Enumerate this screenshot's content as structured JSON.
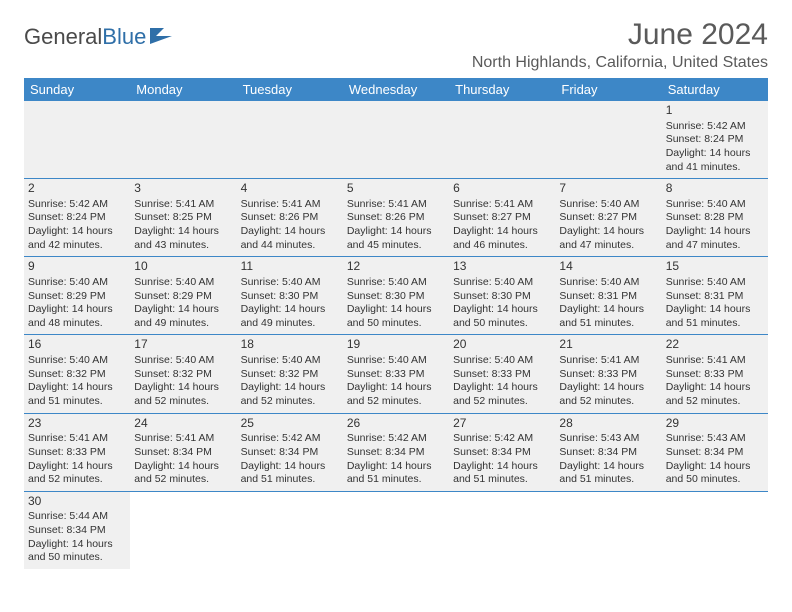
{
  "logo": {
    "part1": "General",
    "part2": "Blue"
  },
  "header": {
    "month_title": "June 2024",
    "location": "North Highlands, California, United States"
  },
  "colors": {
    "header_bar": "#3d87c7",
    "row_divider": "#3d87c7",
    "cell_bg": "#f0f0f0",
    "text": "#333333",
    "logo_accent": "#2f6fa8"
  },
  "weekdays": [
    "Sunday",
    "Monday",
    "Tuesday",
    "Wednesday",
    "Thursday",
    "Friday",
    "Saturday"
  ],
  "weeks": [
    [
      null,
      null,
      null,
      null,
      null,
      null,
      {
        "n": "1",
        "sr": "Sunrise: 5:42 AM",
        "ss": "Sunset: 8:24 PM",
        "d1": "Daylight: 14 hours",
        "d2": "and 41 minutes."
      }
    ],
    [
      {
        "n": "2",
        "sr": "Sunrise: 5:42 AM",
        "ss": "Sunset: 8:24 PM",
        "d1": "Daylight: 14 hours",
        "d2": "and 42 minutes."
      },
      {
        "n": "3",
        "sr": "Sunrise: 5:41 AM",
        "ss": "Sunset: 8:25 PM",
        "d1": "Daylight: 14 hours",
        "d2": "and 43 minutes."
      },
      {
        "n": "4",
        "sr": "Sunrise: 5:41 AM",
        "ss": "Sunset: 8:26 PM",
        "d1": "Daylight: 14 hours",
        "d2": "and 44 minutes."
      },
      {
        "n": "5",
        "sr": "Sunrise: 5:41 AM",
        "ss": "Sunset: 8:26 PM",
        "d1": "Daylight: 14 hours",
        "d2": "and 45 minutes."
      },
      {
        "n": "6",
        "sr": "Sunrise: 5:41 AM",
        "ss": "Sunset: 8:27 PM",
        "d1": "Daylight: 14 hours",
        "d2": "and 46 minutes."
      },
      {
        "n": "7",
        "sr": "Sunrise: 5:40 AM",
        "ss": "Sunset: 8:27 PM",
        "d1": "Daylight: 14 hours",
        "d2": "and 47 minutes."
      },
      {
        "n": "8",
        "sr": "Sunrise: 5:40 AM",
        "ss": "Sunset: 8:28 PM",
        "d1": "Daylight: 14 hours",
        "d2": "and 47 minutes."
      }
    ],
    [
      {
        "n": "9",
        "sr": "Sunrise: 5:40 AM",
        "ss": "Sunset: 8:29 PM",
        "d1": "Daylight: 14 hours",
        "d2": "and 48 minutes."
      },
      {
        "n": "10",
        "sr": "Sunrise: 5:40 AM",
        "ss": "Sunset: 8:29 PM",
        "d1": "Daylight: 14 hours",
        "d2": "and 49 minutes."
      },
      {
        "n": "11",
        "sr": "Sunrise: 5:40 AM",
        "ss": "Sunset: 8:30 PM",
        "d1": "Daylight: 14 hours",
        "d2": "and 49 minutes."
      },
      {
        "n": "12",
        "sr": "Sunrise: 5:40 AM",
        "ss": "Sunset: 8:30 PM",
        "d1": "Daylight: 14 hours",
        "d2": "and 50 minutes."
      },
      {
        "n": "13",
        "sr": "Sunrise: 5:40 AM",
        "ss": "Sunset: 8:30 PM",
        "d1": "Daylight: 14 hours",
        "d2": "and 50 minutes."
      },
      {
        "n": "14",
        "sr": "Sunrise: 5:40 AM",
        "ss": "Sunset: 8:31 PM",
        "d1": "Daylight: 14 hours",
        "d2": "and 51 minutes."
      },
      {
        "n": "15",
        "sr": "Sunrise: 5:40 AM",
        "ss": "Sunset: 8:31 PM",
        "d1": "Daylight: 14 hours",
        "d2": "and 51 minutes."
      }
    ],
    [
      {
        "n": "16",
        "sr": "Sunrise: 5:40 AM",
        "ss": "Sunset: 8:32 PM",
        "d1": "Daylight: 14 hours",
        "d2": "and 51 minutes."
      },
      {
        "n": "17",
        "sr": "Sunrise: 5:40 AM",
        "ss": "Sunset: 8:32 PM",
        "d1": "Daylight: 14 hours",
        "d2": "and 52 minutes."
      },
      {
        "n": "18",
        "sr": "Sunrise: 5:40 AM",
        "ss": "Sunset: 8:32 PM",
        "d1": "Daylight: 14 hours",
        "d2": "and 52 minutes."
      },
      {
        "n": "19",
        "sr": "Sunrise: 5:40 AM",
        "ss": "Sunset: 8:33 PM",
        "d1": "Daylight: 14 hours",
        "d2": "and 52 minutes."
      },
      {
        "n": "20",
        "sr": "Sunrise: 5:40 AM",
        "ss": "Sunset: 8:33 PM",
        "d1": "Daylight: 14 hours",
        "d2": "and 52 minutes."
      },
      {
        "n": "21",
        "sr": "Sunrise: 5:41 AM",
        "ss": "Sunset: 8:33 PM",
        "d1": "Daylight: 14 hours",
        "d2": "and 52 minutes."
      },
      {
        "n": "22",
        "sr": "Sunrise: 5:41 AM",
        "ss": "Sunset: 8:33 PM",
        "d1": "Daylight: 14 hours",
        "d2": "and 52 minutes."
      }
    ],
    [
      {
        "n": "23",
        "sr": "Sunrise: 5:41 AM",
        "ss": "Sunset: 8:33 PM",
        "d1": "Daylight: 14 hours",
        "d2": "and 52 minutes."
      },
      {
        "n": "24",
        "sr": "Sunrise: 5:41 AM",
        "ss": "Sunset: 8:34 PM",
        "d1": "Daylight: 14 hours",
        "d2": "and 52 minutes."
      },
      {
        "n": "25",
        "sr": "Sunrise: 5:42 AM",
        "ss": "Sunset: 8:34 PM",
        "d1": "Daylight: 14 hours",
        "d2": "and 51 minutes."
      },
      {
        "n": "26",
        "sr": "Sunrise: 5:42 AM",
        "ss": "Sunset: 8:34 PM",
        "d1": "Daylight: 14 hours",
        "d2": "and 51 minutes."
      },
      {
        "n": "27",
        "sr": "Sunrise: 5:42 AM",
        "ss": "Sunset: 8:34 PM",
        "d1": "Daylight: 14 hours",
        "d2": "and 51 minutes."
      },
      {
        "n": "28",
        "sr": "Sunrise: 5:43 AM",
        "ss": "Sunset: 8:34 PM",
        "d1": "Daylight: 14 hours",
        "d2": "and 51 minutes."
      },
      {
        "n": "29",
        "sr": "Sunrise: 5:43 AM",
        "ss": "Sunset: 8:34 PM",
        "d1": "Daylight: 14 hours",
        "d2": "and 50 minutes."
      }
    ],
    [
      {
        "n": "30",
        "sr": "Sunrise: 5:44 AM",
        "ss": "Sunset: 8:34 PM",
        "d1": "Daylight: 14 hours",
        "d2": "and 50 minutes."
      },
      null,
      null,
      null,
      null,
      null,
      null
    ]
  ]
}
